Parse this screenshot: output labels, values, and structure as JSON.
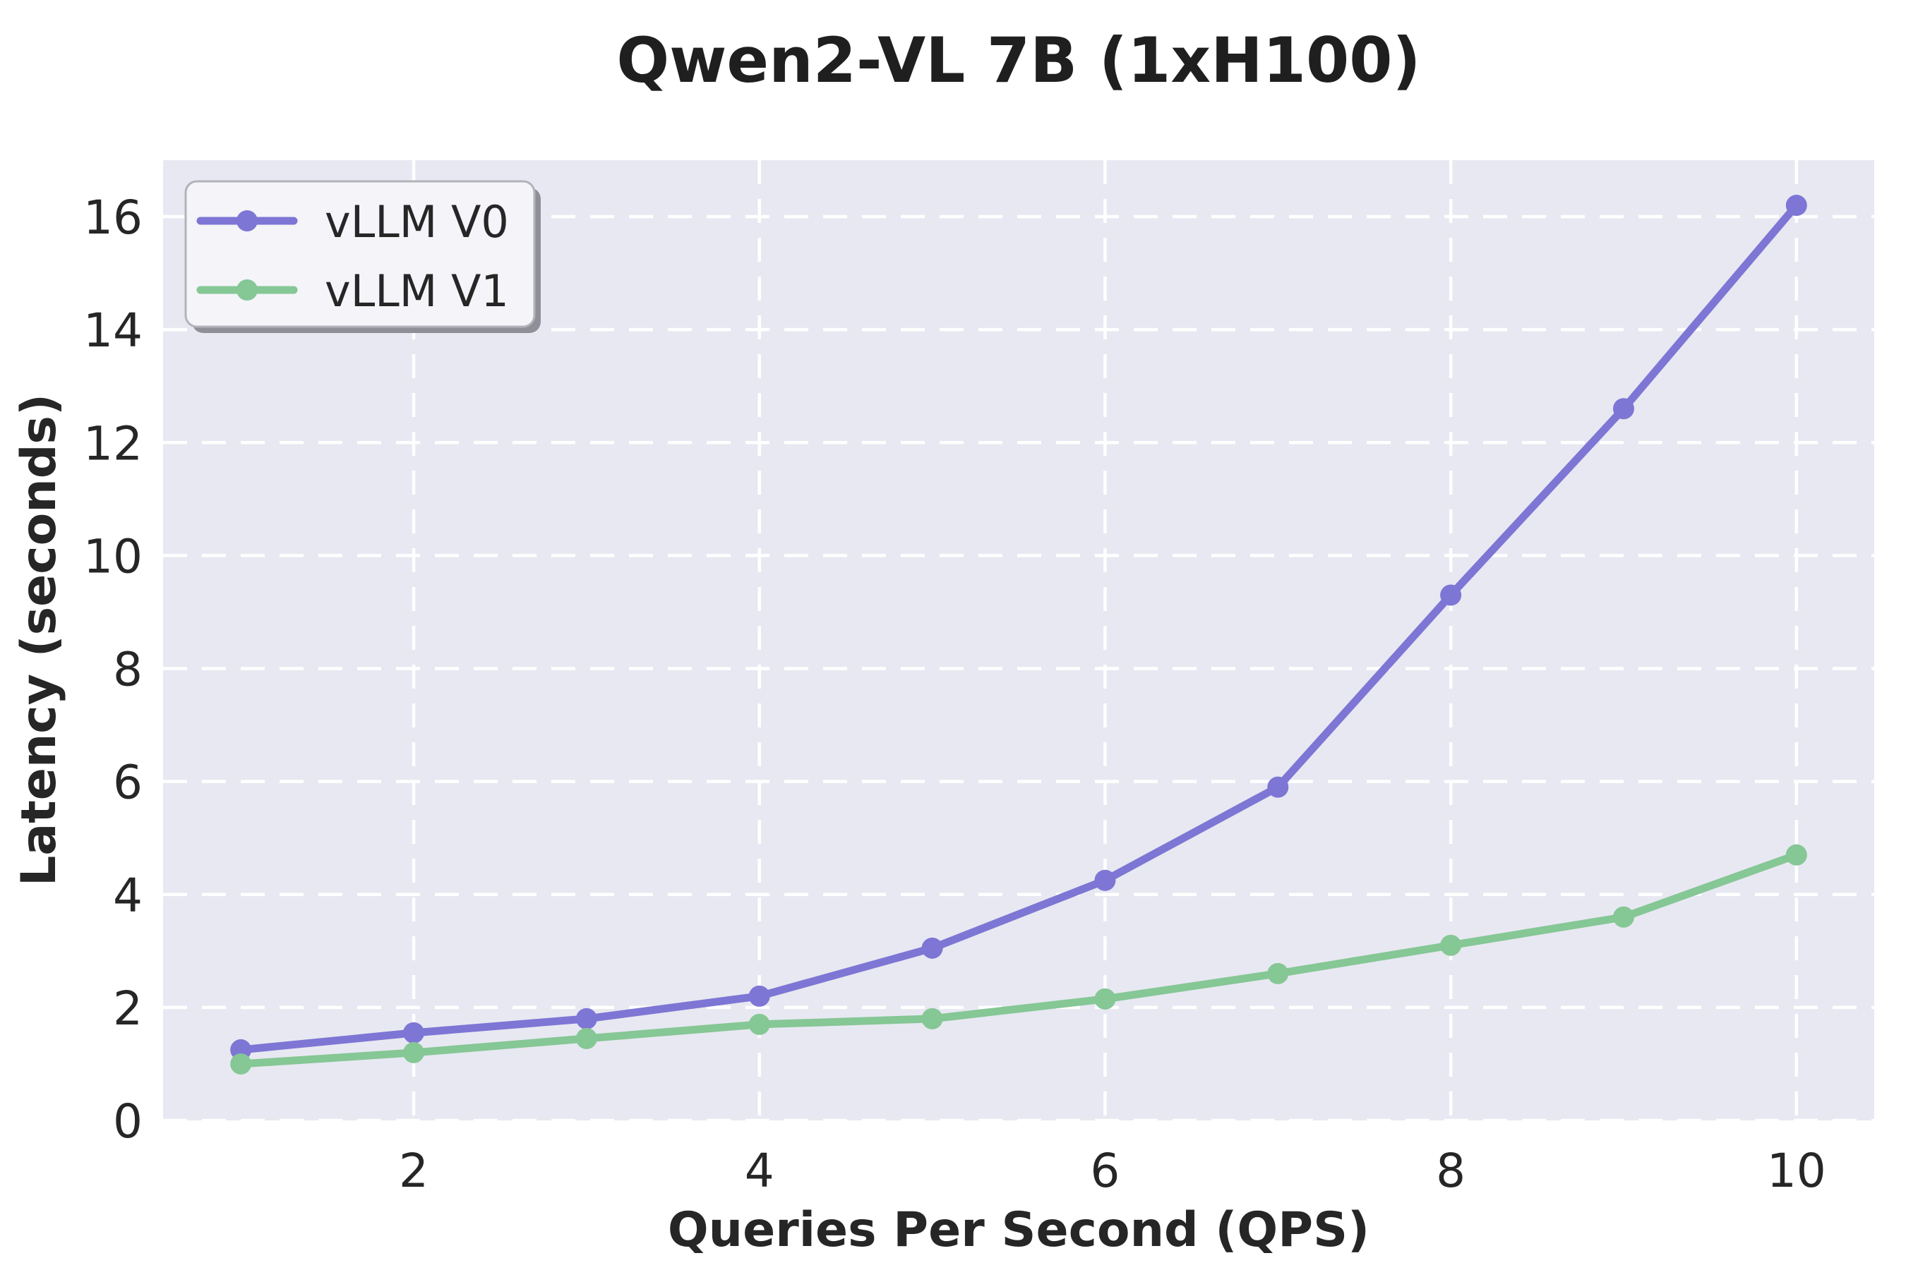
{
  "chart_data": {
    "type": "line",
    "title": "Qwen2-VL 7B (1xH100)",
    "xlabel": "Queries Per Second (QPS)",
    "ylabel": "Latency (seconds)",
    "x": [
      1,
      2,
      3,
      4,
      5,
      6,
      7,
      8,
      9,
      10
    ],
    "series": [
      {
        "name": "vLLM V0",
        "color": "#7d76d4",
        "values": [
          1.25,
          1.55,
          1.8,
          2.2,
          3.05,
          4.25,
          5.9,
          9.3,
          12.6,
          16.2
        ]
      },
      {
        "name": "vLLM V1",
        "color": "#85c795",
        "values": [
          1.0,
          1.2,
          1.45,
          1.7,
          1.8,
          2.15,
          2.6,
          3.1,
          3.6,
          4.7
        ]
      }
    ],
    "xticks": [
      2,
      4,
      6,
      8,
      10
    ],
    "yticks": [
      0,
      2,
      4,
      6,
      8,
      10,
      12,
      14,
      16
    ],
    "xlim": [
      0.55,
      10.45
    ],
    "ylim": [
      0,
      17
    ],
    "grid": true,
    "legend_position": "upper left",
    "style": {
      "plot_bg": "#e8e8f2",
      "grid_color": "#ffffff",
      "text_color": "#262626",
      "legend_bg": "#f4f4f9",
      "legend_border": "#b2b2ba",
      "legend_shadow": "#8f8f98",
      "line_width": 11,
      "marker_radius": 15
    }
  }
}
